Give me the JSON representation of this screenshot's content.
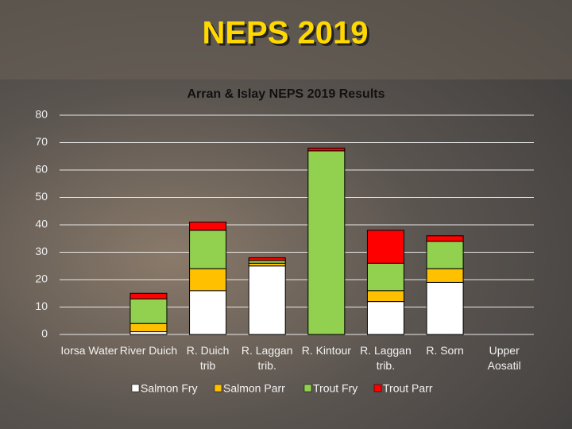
{
  "slide_title": "NEPS 2019",
  "chart_data": {
    "type": "stacked_bar",
    "title": "Arran & Islay NEPS 2019 Results",
    "categories": [
      "Iorsa Water",
      "River Duich",
      "R. Duich trib",
      "R. Laggan trib.",
      "R. Kintour",
      "R. Laggan trib.",
      "R. Sorn",
      "Upper Aosatil"
    ],
    "series": [
      {
        "name": "Salmon Fry",
        "color": "#ffffff",
        "values": [
          0,
          1,
          16,
          25,
          0,
          12,
          19,
          0
        ]
      },
      {
        "name": "Salmon Parr",
        "color": "#ffc000",
        "values": [
          0,
          3,
          8,
          1,
          0,
          4,
          5,
          0
        ]
      },
      {
        "name": "Trout Fry",
        "color": "#92d050",
        "values": [
          0,
          9,
          14,
          1,
          67,
          10,
          10,
          0
        ]
      },
      {
        "name": "Trout Parr",
        "color": "#ff0000",
        "values": [
          0,
          2,
          3,
          1,
          1,
          12,
          2,
          0
        ]
      }
    ],
    "ylim": [
      0,
      80
    ],
    "yticks": [
      0,
      10,
      20,
      30,
      40,
      50,
      60,
      70,
      80
    ],
    "grid": true,
    "legend": "bottom"
  }
}
